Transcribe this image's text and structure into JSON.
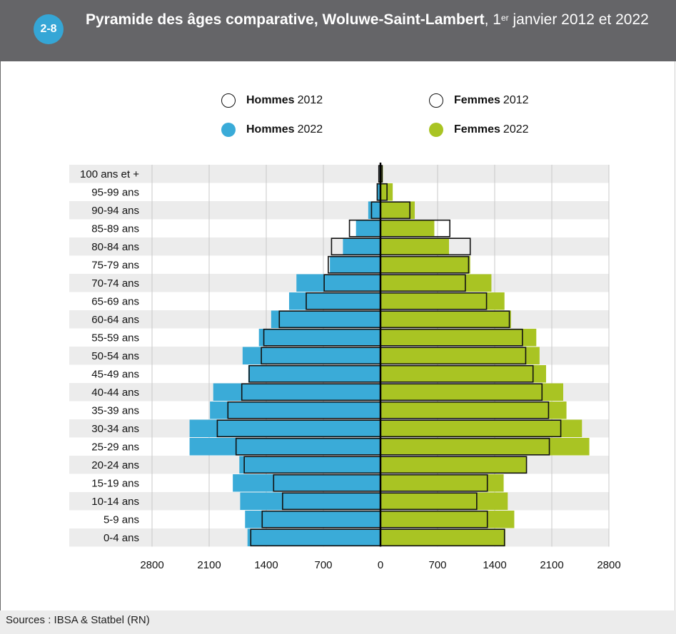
{
  "header": {
    "badge": "2-8",
    "title_bold": "Pyramide des âges comparative, Woluwe-Saint-Lambert",
    "title_pre": ", 1",
    "title_sup": "er",
    "title_post": " janvier 2012 et 2022"
  },
  "legend": {
    "men_2012": {
      "bold": "Hommes",
      "year": "2012"
    },
    "women_2012": {
      "bold": "Femmes",
      "year": "2012"
    },
    "men_2022": {
      "bold": "Hommes",
      "year": "2022"
    },
    "women_2022": {
      "bold": "Femmes",
      "year": "2022"
    }
  },
  "colors": {
    "men_2022": "#3aabd8",
    "women_2022": "#a9c423",
    "outline_2012": "#111111",
    "header_bg": "#656568",
    "badge": "#35a6d6"
  },
  "footer": {
    "source": "Sources : IBSA & Statbel (RN)"
  },
  "chart_data": {
    "type": "bar",
    "orientation": "horizontal-pyramid",
    "categories": [
      "100 ans et +",
      "95-99 ans",
      "90-94 ans",
      "85-89 ans",
      "80-84 ans",
      "75-79 ans",
      "70-74 ans",
      "65-69 ans",
      "60-64 ans",
      "55-59 ans",
      "50-54 ans",
      "45-49 ans",
      "40-44 ans",
      "35-39 ans",
      "30-34 ans",
      "25-29 ans",
      "20-24 ans",
      "15-19 ans",
      "10-14 ans",
      "5-9 ans",
      "0-4 ans"
    ],
    "series": [
      {
        "name": "Hommes 2022",
        "side": "left",
        "style": "filled",
        "values": [
          10,
          40,
          150,
          300,
          460,
          620,
          1030,
          1120,
          1340,
          1490,
          1690,
          1620,
          2050,
          2090,
          2340,
          2340,
          1730,
          1810,
          1720,
          1660,
          1630
        ]
      },
      {
        "name": "Hommes 2012",
        "side": "left",
        "style": "outline",
        "values": [
          20,
          40,
          110,
          380,
          600,
          640,
          690,
          910,
          1240,
          1430,
          1460,
          1610,
          1700,
          1870,
          2000,
          1770,
          1670,
          1310,
          1200,
          1450,
          1590
        ]
      },
      {
        "name": "Femmes 2022",
        "side": "right",
        "style": "filled",
        "values": [
          30,
          150,
          420,
          660,
          840,
          1100,
          1360,
          1520,
          1600,
          1910,
          1950,
          2030,
          2240,
          2280,
          2470,
          2560,
          1790,
          1510,
          1560,
          1640,
          1530
        ]
      },
      {
        "name": "Femmes 2012",
        "side": "right",
        "style": "outline",
        "values": [
          20,
          80,
          360,
          850,
          1100,
          1080,
          1040,
          1300,
          1580,
          1740,
          1780,
          1870,
          1980,
          2060,
          2210,
          2070,
          1790,
          1310,
          1180,
          1310,
          1520
        ]
      }
    ],
    "xlim": [
      -2800,
      2800
    ],
    "xticks": [
      -2800,
      -2100,
      -1400,
      -700,
      0,
      700,
      1400,
      2100,
      2800
    ],
    "xtick_labels": [
      "2800",
      "2100",
      "1400",
      "700",
      "0",
      "700",
      "1400",
      "2100",
      "2800"
    ],
    "grid": "vertical",
    "legend": "top"
  }
}
